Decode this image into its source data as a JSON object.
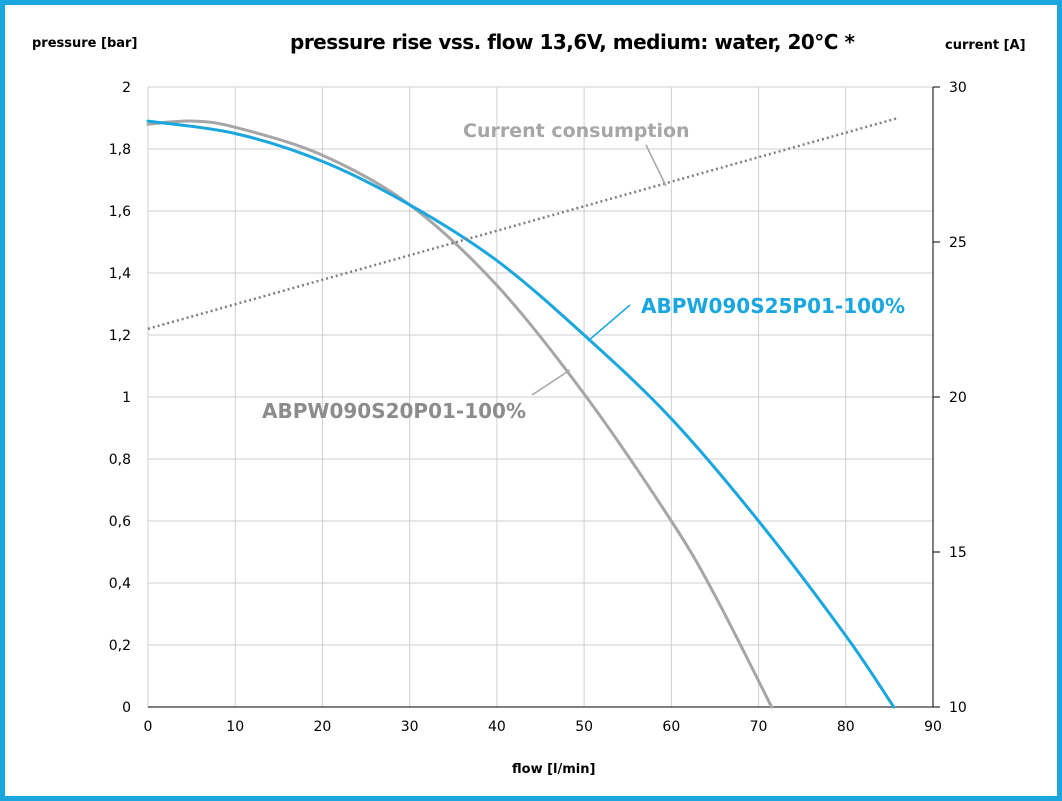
{
  "chart_data": {
    "type": "line",
    "title": "pressure rise vss. flow 13,6V, medium: water, 20°C *",
    "xlabel": "flow [l/min]",
    "ylabel": "pressure [bar]",
    "y2label": "current [A]",
    "xlim": [
      0,
      90
    ],
    "ylim": [
      0,
      2
    ],
    "y2lim": [
      10,
      30
    ],
    "x_ticks": [
      0,
      10,
      20,
      30,
      40,
      50,
      60,
      70,
      80,
      90
    ],
    "y_ticks": [
      0,
      0.2,
      0.4,
      0.6,
      0.8,
      1.0,
      1.2,
      1.4,
      1.6,
      1.8,
      2.0
    ],
    "y_tick_labels": [
      "0",
      "0,2",
      "0,4",
      "0,6",
      "0,8",
      "1",
      "1,2",
      "1,4",
      "1,6",
      "1,8",
      "2"
    ],
    "y2_ticks": [
      10,
      15,
      20,
      25,
      30
    ],
    "y2_tick_labels": [
      "10",
      "15",
      "20",
      "25",
      "30"
    ],
    "grid": true,
    "series": [
      {
        "name": "ABPW090S25P01-100%",
        "axis": "left",
        "color": "#1aa7e0",
        "style": "solid",
        "points": [
          [
            0,
            1.89
          ],
          [
            10,
            1.85
          ],
          [
            20,
            1.76
          ],
          [
            30,
            1.62
          ],
          [
            40,
            1.44
          ],
          [
            50,
            1.2
          ],
          [
            60,
            0.93
          ],
          [
            70,
            0.6
          ],
          [
            80,
            0.23
          ],
          [
            85.5,
            0
          ]
        ]
      },
      {
        "name": "ABPW090S20P01-100%",
        "axis": "left",
        "color": "#a6a6a6",
        "style": "solid",
        "points": [
          [
            0,
            1.88
          ],
          [
            5,
            1.89
          ],
          [
            10,
            1.87
          ],
          [
            20,
            1.78
          ],
          [
            30,
            1.62
          ],
          [
            40,
            1.36
          ],
          [
            50,
            1.01
          ],
          [
            60,
            0.6
          ],
          [
            65,
            0.36
          ],
          [
            71.5,
            0
          ]
        ]
      },
      {
        "name": "Current consumption",
        "axis": "right",
        "color": "#7f7f7f",
        "style": "dotted",
        "points": [
          [
            0,
            22.2
          ],
          [
            86,
            29.0
          ]
        ]
      }
    ],
    "annotations": [
      {
        "text": "Current consumption",
        "color": "#a6a6a6"
      },
      {
        "text": "ABPW090S25P01-100%",
        "color": "#1aa7e0"
      },
      {
        "text": "ABPW090S20P01-100%",
        "color": "#8c8c8c"
      }
    ]
  }
}
